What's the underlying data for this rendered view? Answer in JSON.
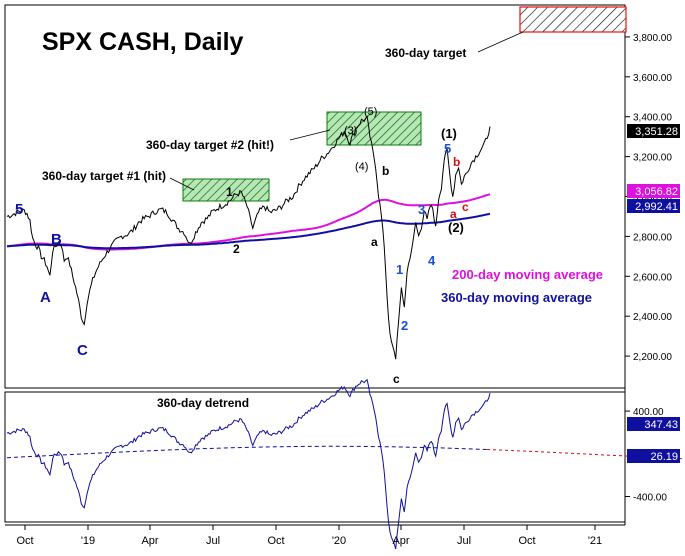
{
  "chart_data": {
    "type": "line",
    "title": "SPX CASH, Daily",
    "x_labels": [
      "Oct",
      "'19",
      "Apr",
      "Jul",
      "Oct",
      "'20",
      "Apr",
      "Jul",
      "Oct",
      "'21"
    ],
    "price_axis": {
      "ylim": [
        2050,
        3950
      ],
      "ticks": [
        "2,200.00",
        "2,400.00",
        "2,600.00",
        "2,800.00",
        "3,000.00",
        "3,200.00",
        "3,400.00",
        "3,600.00",
        "3,800.00"
      ],
      "tick_values": [
        2200,
        2400,
        2600,
        2800,
        3000,
        3200,
        3400,
        3600,
        3800
      ]
    },
    "detrend_axis": {
      "ylim": [
        -620,
        560
      ],
      "ticks": [
        "400.00",
        "-400.00"
      ],
      "tick_values": [
        400,
        -400
      ]
    },
    "series": [
      {
        "name": "SPX Daily",
        "color": "#000000",
        "points": [
          [
            0,
            2900
          ],
          [
            2,
            2910
          ],
          [
            4,
            2925
          ],
          [
            6,
            2930
          ],
          [
            7,
            2915
          ],
          [
            8,
            2880
          ],
          [
            9,
            2790
          ],
          [
            10,
            2760
          ],
          [
            11,
            2740
          ],
          [
            12,
            2700
          ],
          [
            13,
            2680
          ],
          [
            14,
            2650
          ],
          [
            15,
            2600
          ],
          [
            16,
            2730
          ],
          [
            17,
            2750
          ],
          [
            18,
            2770
          ],
          [
            19,
            2760
          ],
          [
            20,
            2680
          ],
          [
            21,
            2700
          ],
          [
            22,
            2660
          ],
          [
            23,
            2600
          ],
          [
            24,
            2545
          ],
          [
            25,
            2480
          ],
          [
            26,
            2400
          ],
          [
            27,
            2360
          ],
          [
            28,
            2470
          ],
          [
            29,
            2530
          ],
          [
            30,
            2580
          ],
          [
            31,
            2620
          ],
          [
            32,
            2650
          ],
          [
            34,
            2700
          ],
          [
            36,
            2740
          ],
          [
            38,
            2775
          ],
          [
            40,
            2800
          ],
          [
            42,
            2810
          ],
          [
            44,
            2830
          ],
          [
            46,
            2870
          ],
          [
            48,
            2890
          ],
          [
            50,
            2905
          ],
          [
            52,
            2925
          ],
          [
            54,
            2935
          ],
          [
            56,
            2920
          ],
          [
            58,
            2880
          ],
          [
            60,
            2840
          ],
          [
            62,
            2820
          ],
          [
            64,
            2760
          ],
          [
            66,
            2820
          ],
          [
            68,
            2870
          ],
          [
            70,
            2890
          ],
          [
            72,
            2925
          ],
          [
            74,
            2945
          ],
          [
            76,
            2960
          ],
          [
            78,
            2980
          ],
          [
            80,
            3010
          ],
          [
            82,
            3020
          ],
          [
            84,
            2950
          ],
          [
            86,
            2840
          ],
          [
            88,
            2920
          ],
          [
            90,
            2950
          ],
          [
            92,
            2920
          ],
          [
            94,
            2930
          ],
          [
            96,
            2950
          ],
          [
            98,
            2980
          ],
          [
            100,
            3000
          ],
          [
            102,
            3050
          ],
          [
            104,
            3090
          ],
          [
            106,
            3120
          ],
          [
            108,
            3150
          ],
          [
            110,
            3190
          ],
          [
            112,
            3215
          ],
          [
            114,
            3250
          ],
          [
            116,
            3290
          ],
          [
            118,
            3325
          ],
          [
            120,
            3270
          ],
          [
            122,
            3340
          ],
          [
            124,
            3380
          ],
          [
            126,
            3390
          ],
          [
            127,
            3300
          ],
          [
            128,
            3225
          ],
          [
            129,
            3150
          ],
          [
            130,
            3010
          ],
          [
            131,
            2900
          ],
          [
            132,
            2750
          ],
          [
            133,
            2500
          ],
          [
            134,
            2300
          ],
          [
            135,
            2240
          ],
          [
            136,
            2191
          ],
          [
            137,
            2380
          ],
          [
            138,
            2530
          ],
          [
            139,
            2450
          ],
          [
            140,
            2620
          ],
          [
            141,
            2700
          ],
          [
            142,
            2760
          ],
          [
            143,
            2870
          ],
          [
            144,
            2800
          ],
          [
            145,
            2850
          ],
          [
            146,
            2930
          ],
          [
            147,
            2880
          ],
          [
            148,
            2950
          ],
          [
            149,
            2940
          ],
          [
            150,
            2840
          ],
          [
            151,
            2990
          ],
          [
            152,
            3050
          ],
          [
            153,
            3190
          ],
          [
            154,
            3230
          ],
          [
            155,
            3100
          ],
          [
            156,
            3000
          ],
          [
            157,
            3110
          ],
          [
            158,
            3150
          ],
          [
            159,
            3060
          ],
          [
            160,
            3100
          ],
          [
            161,
            3120
          ],
          [
            162,
            3160
          ],
          [
            163,
            3180
          ],
          [
            164,
            3200
          ],
          [
            165,
            3220
          ],
          [
            166,
            3240
          ],
          [
            167,
            3260
          ],
          [
            168,
            3300
          ],
          [
            169,
            3351
          ]
        ]
      },
      {
        "name": "200-day moving average",
        "color": "#dd10dd",
        "label_value": "3,056.82"
      },
      {
        "name": "360-day moving average",
        "color": "#1010a0",
        "label_value": "2,992.41"
      },
      {
        "name": "360-day detrend",
        "color": "#1010a0",
        "label_value": "347.43"
      },
      {
        "name": "detrend baseline",
        "color": "#1010a0",
        "label_value": "26.19"
      }
    ],
    "last_price_label": "3,351.28",
    "annotations": {
      "title_text": "SPX CASH, Daily",
      "target_main": "360-day target",
      "target_two": "360-day target #2 (hit!)",
      "target_one": "360-day target #1 (hit)",
      "ma200_label": "200-day moving average",
      "ma360_label": "360-day moving average",
      "detrend_label": "360-day detrend",
      "waves": {
        "w5_blue": "5",
        "wA": "A",
        "wB": "B",
        "wC": "C",
        "w1_black": "1",
        "w2_black": "2",
        "w3_paren": "(3)",
        "w4_paren": "(4)",
        "w5_paren": "(5)",
        "wa": "a",
        "wb": "b",
        "wc": "c",
        "w1_blue2": "1",
        "w2_blue2": "2",
        "w3_blue2": "3",
        "w4_blue2": "4",
        "w5_blue2": "5",
        "w1_paren": "(1)",
        "w2_paren": "(2)",
        "wa_red": "a",
        "wb_red": "b",
        "wc_red": "c"
      }
    }
  }
}
